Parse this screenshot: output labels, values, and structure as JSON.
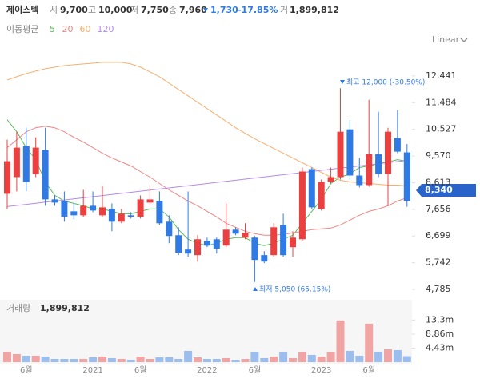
{
  "chart_data": {
    "type": "candlestick",
    "title": "제이스텍",
    "summary": [
      {
        "label": "시",
        "value": "9,700"
      },
      {
        "label": "고",
        "value": "10,000"
      },
      {
        "label": "저",
        "value": "7,750"
      },
      {
        "label": "종",
        "value": "7,960"
      }
    ],
    "change": "1,730",
    "change_pct": "-17.85%",
    "volume_label": "거",
    "volume_value": "1,899,812",
    "ma_title": "이동평균",
    "scale_mode": "Linear",
    "last_price_tag": "8,340",
    "annotations": {
      "high": "최고 12,000 (-30.50%)",
      "low": "최저 5,050 (65.15%)"
    },
    "up_color": "#ec4040",
    "down_color": "#2f7ae5",
    "categories": [
      null,
      null,
      "6월",
      null,
      null,
      null,
      null,
      null,
      null,
      "2021",
      null,
      null,
      null,
      null,
      "6월",
      null,
      null,
      null,
      null,
      null,
      null,
      "2022",
      null,
      null,
      null,
      null,
      "6월",
      null,
      null,
      null,
      null,
      null,
      null,
      "2023",
      null,
      null,
      null,
      null,
      "6월",
      null,
      null,
      null,
      null
    ],
    "open": [
      8213,
      8813,
      9927,
      8927,
      9784,
      8013,
      7956,
      7584,
      7441,
      7784,
      7441,
      7670,
      7213,
      7441,
      7384,
      7898,
      7956,
      7213,
      6727,
      6213,
      6013,
      6527,
      6584,
      6356,
      6927,
      6641,
      6641,
      6013,
      6013,
      7099,
      6299,
      6584,
      9099,
      7670,
      8641,
      8813,
      10527,
      8870,
      8527,
      9641,
      8927,
      10213,
      9700
    ],
    "high": [
      10155,
      10441,
      10584,
      10241,
      10584,
      8155,
      8298,
      7870,
      8355,
      8298,
      8498,
      7870,
      7670,
      7556,
      8155,
      8527,
      8298,
      7441,
      7013,
      8298,
      6727,
      6641,
      6641,
      7870,
      7013,
      7156,
      6699,
      6156,
      7156,
      7498,
      6870,
      9156,
      9156,
      8727,
      9156,
      12000,
      10870,
      9498,
      11584,
      11156,
      10584,
      11213,
      10000
    ],
    "low": [
      7670,
      8298,
      8298,
      8813,
      7784,
      7784,
      7213,
      7298,
      7384,
      7556,
      7384,
      6870,
      7156,
      7327,
      7327,
      7841,
      7099,
      6441,
      6013,
      5956,
      5784,
      6299,
      6070,
      6299,
      6727,
      6584,
      5050,
      5727,
      5956,
      5956,
      5956,
      6527,
      7670,
      7613,
      8584,
      8727,
      8727,
      8441,
      8470,
      8813,
      7784,
      9670,
      7750
    ],
    "close": [
      9384,
      9870,
      8641,
      9870,
      8013,
      7898,
      7384,
      7441,
      7784,
      7613,
      7727,
      7213,
      7498,
      7384,
      8013,
      8013,
      7156,
      6699,
      6099,
      6070,
      6584,
      6356,
      6241,
      6927,
      6784,
      6813,
      5841,
      5784,
      7013,
      6013,
      6641,
      9013,
      7727,
      8641,
      8813,
      10441,
      8870,
      8527,
      9641,
      8927,
      10441,
      9727,
      7960
    ],
    "volume": [
      3.29,
      2.53,
      2.02,
      2.02,
      1.77,
      1.01,
      1.01,
      1.01,
      1.01,
      1.52,
      1.77,
      1.27,
      1.01,
      0.76,
      1.77,
      1.01,
      1.52,
      1.52,
      1.01,
      3.54,
      1.52,
      1.01,
      1.01,
      1.27,
      0.76,
      1.01,
      3.29,
      1.27,
      1.77,
      3.29,
      1.27,
      3.29,
      2.28,
      1.77,
      3.29,
      13.16,
      3.54,
      2.02,
      12.15,
      3.29,
      4.05,
      3.8,
      1.9
    ],
    "series": [
      {
        "name": "5",
        "color": "#5cb85c",
        "values": [
          10870,
          10441,
          9870,
          9441,
          8641,
          8155,
          7956,
          7870,
          7784,
          7670,
          7670,
          7584,
          7498,
          7498,
          7584,
          7670,
          7670,
          7384,
          6927,
          6584,
          6441,
          6356,
          6441,
          6584,
          6641,
          6641,
          6441,
          6356,
          6441,
          6584,
          6727,
          7156,
          7584,
          8013,
          8584,
          8813,
          8927,
          9156,
          9213,
          9298,
          9356,
          9441,
          9384
        ]
      },
      {
        "name": "20",
        "color": "#f08585",
        "values": [
          9870,
          10155,
          10441,
          10584,
          10641,
          10584,
          10441,
          10241,
          10070,
          9870,
          9670,
          9498,
          9356,
          9213,
          9013,
          8813,
          8584,
          8355,
          8155,
          7956,
          7784,
          7584,
          7384,
          7156,
          7013,
          6870,
          6784,
          6727,
          6727,
          6756,
          6813,
          6870,
          6927,
          6956,
          6984,
          7099,
          7270,
          7441,
          7584,
          7670,
          7784,
          7956,
          8070
        ]
      },
      {
        "name": "60",
        "color": "#f5b070",
        "values": [
          12298,
          12412,
          12527,
          12612,
          12698,
          12755,
          12812,
          12841,
          12870,
          12898,
          12927,
          12927,
          12927,
          12870,
          12755,
          12584,
          12412,
          12184,
          11955,
          11727,
          11498,
          11270,
          11041,
          10813,
          10584,
          10384,
          10184,
          10013,
          9841,
          9670,
          9498,
          9327,
          9156,
          8984,
          8813,
          8698,
          8641,
          8612,
          8584,
          8555,
          8527,
          8527,
          8498
        ]
      },
      {
        "name": "120",
        "color": "#b58be8",
        "values": [
          7756,
          7795,
          7835,
          7874,
          7914,
          7953,
          7992,
          8032,
          8071,
          8111,
          8150,
          8189,
          8229,
          8268,
          8308,
          8347,
          8386,
          8426,
          8465,
          8505,
          8544,
          8583,
          8623,
          8662,
          8702,
          8741,
          8780,
          8820,
          8859,
          8898,
          8938,
          8977,
          9017,
          9056,
          9095,
          9135,
          9174,
          9214,
          9253,
          9292,
          9332,
          9371,
          9410
        ]
      }
    ],
    "ylim": [
      4556,
      13298
    ],
    "yticks": [
      {
        "value": 12441,
        "label": "12,441"
      },
      {
        "value": 11484,
        "label": "11,484"
      },
      {
        "value": 10527,
        "label": "10,527"
      },
      {
        "value": 9570,
        "label": "9,570"
      },
      {
        "value": 8613,
        "label": "8,613"
      },
      {
        "value": 7656,
        "label": "7,656"
      },
      {
        "value": 6699,
        "label": "6,699"
      },
      {
        "value": 5742,
        "label": "5,742"
      },
      {
        "value": 4785,
        "label": "4,785"
      }
    ],
    "volume_title": "거래량",
    "volume_total": "1,899,812",
    "vlim": [
      0,
      19.7
    ],
    "vticks": [
      {
        "value": 13.3,
        "label": "13.3m"
      },
      {
        "value": 8.86,
        "label": "8.86m"
      },
      {
        "value": 4.43,
        "label": "4.43m"
      }
    ]
  }
}
